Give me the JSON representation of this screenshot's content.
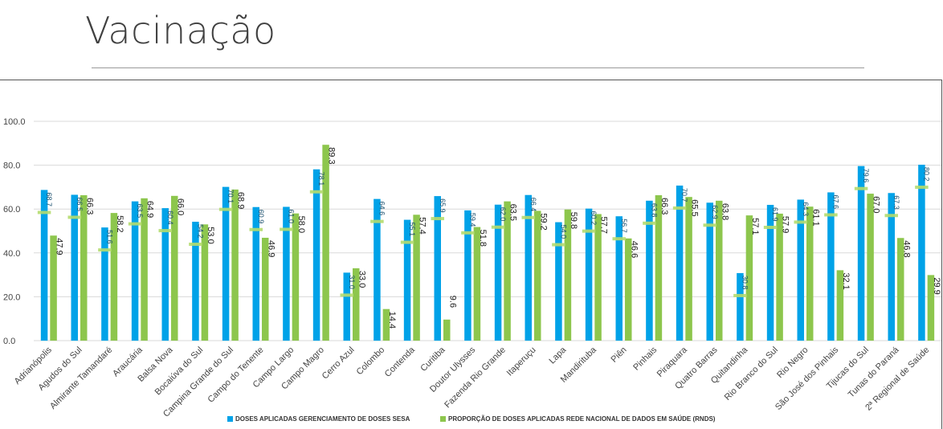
{
  "slide": {
    "title": "Vacinação"
  },
  "colors": {
    "series1": "#00A2E8",
    "series2": "#8DC64D",
    "marker": "#B4DC6E",
    "grid": "#d9d9d9",
    "axis_text": "#444444"
  },
  "chart_data": {
    "type": "bar",
    "title": "",
    "xlabel": "",
    "ylabel": "",
    "ylim": [
      0,
      100
    ],
    "yticks": [
      "0.0",
      "20.0",
      "40.0",
      "60.0",
      "80.0",
      "100.0"
    ],
    "grid": true,
    "legend_position": "bottom",
    "categories": [
      "Adrianópolis",
      "Agudos do Sul",
      "Almirante Tamandaré",
      "Araucária",
      "Balsa Nova",
      "Bocaiúva do Sul",
      "Campina Grande do Sul",
      "Campo do Tenente",
      "Campo Largo",
      "Campo Magro",
      "Cerro Azul",
      "Colombo",
      "Contenda",
      "Curitiba",
      "Doutor Ulysses",
      "Fazenda Rio Grande",
      "Itaperuçu",
      "Lapa",
      "Mandirituba",
      "Piên",
      "Pinhais",
      "Piraquara",
      "Quatro Barras",
      "Quitandinha",
      "Rio Branco do Sul",
      "Rio Negro",
      "São José dos Pinhais",
      "Tijucas do Sul",
      "Tunas do Paraná",
      "2ª Regional de Saúde"
    ],
    "series": [
      {
        "name": "DOSES APLICADAS GERENCIAMENTO DE DOSES SESA",
        "values": [
          68.7,
          66.5,
          51.6,
          63.5,
          60.4,
          54.2,
          70.1,
          60.9,
          61.0,
          78.1,
          31.0,
          64.6,
          55.1,
          65.9,
          59.4,
          62.0,
          66.4,
          54.0,
          60.2,
          56.7,
          63.8,
          70.7,
          62.9,
          30.8,
          61.9,
          64.3,
          67.6,
          79.6,
          67.3,
          80.2
        ]
      },
      {
        "name": "PROPORÇÃO DE DOSES APLICADAS REDE NACIONAL DE DADOS EM SAÚDE (RNDS)",
        "values": [
          47.9,
          66.3,
          58.2,
          64.9,
          66.0,
          53.0,
          68.9,
          46.9,
          58.0,
          89.3,
          33.0,
          14.4,
          57.4,
          9.6,
          51.8,
          63.5,
          59.2,
          59.8,
          57.7,
          46.6,
          66.3,
          65.5,
          63.8,
          57.1,
          57.9,
          61.1,
          32.1,
          67.0,
          46.8,
          29.9
        ]
      }
    ]
  }
}
